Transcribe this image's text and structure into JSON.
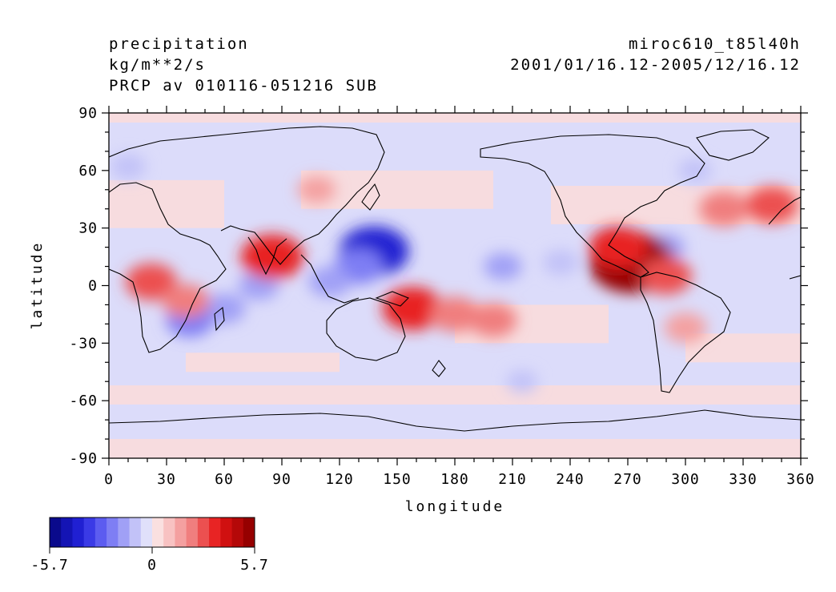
{
  "header": {
    "left_lines": [
      "precipitation",
      "kg/m**2/s",
      "PRCP av 010116-051216 SUB"
    ],
    "right_lines": [
      "miroc610_t85l40h",
      "2001/01/16.12-2005/12/16.12"
    ]
  },
  "chart_data": {
    "type": "heatmap",
    "xlabel": "longitude",
    "ylabel": "latitude",
    "xlim": [
      0,
      360
    ],
    "ylim": [
      -90,
      90
    ],
    "x_ticks": [
      0,
      30,
      60,
      90,
      120,
      150,
      180,
      210,
      240,
      270,
      300,
      330,
      360
    ],
    "y_ticks": [
      90,
      60,
      30,
      0,
      -30,
      -60,
      -90
    ],
    "colorbar": {
      "range": [
        -5.7,
        5.7
      ],
      "tick_labels": [
        "-5.7",
        "0",
        "5.7"
      ],
      "colors": [
        "#0a0a8c",
        "#1414b4",
        "#2020d2",
        "#3a3ae6",
        "#5c5cf0",
        "#7e7ef4",
        "#a0a0f6",
        "#c2c2f8",
        "#e0e0fa",
        "#fae0e0",
        "#f8c2c2",
        "#f4a0a0",
        "#f07e7e",
        "#ec5050",
        "#e82424",
        "#d01010",
        "#b40808",
        "#960000"
      ]
    },
    "background_colors": {
      "negative": "#dcdcfa",
      "positive": "#fadcdc"
    },
    "anomalies": [
      {
        "lon": 138,
        "lat": 18,
        "value": -4.2
      },
      {
        "lon": 130,
        "lat": 10,
        "value": -2.4
      },
      {
        "lon": 115,
        "lat": 2,
        "value": -1.8
      },
      {
        "lon": 78,
        "lat": 0,
        "value": -1.6
      },
      {
        "lon": 60,
        "lat": -12,
        "value": -1.8
      },
      {
        "lon": 42,
        "lat": -18,
        "value": -2.2
      },
      {
        "lon": 205,
        "lat": 10,
        "value": -1.4
      },
      {
        "lon": 235,
        "lat": 12,
        "value": -1.2
      },
      {
        "lon": 290,
        "lat": 20,
        "value": -1.3
      },
      {
        "lon": 10,
        "lat": 62,
        "value": -1.2
      },
      {
        "lon": 305,
        "lat": 60,
        "value": -1.0
      },
      {
        "lon": 215,
        "lat": -50,
        "value": -0.8
      },
      {
        "lon": 272,
        "lat": 12,
        "value": 5.6
      },
      {
        "lon": 265,
        "lat": 20,
        "value": 3.2
      },
      {
        "lon": 85,
        "lat": 15,
        "value": 3.6
      },
      {
        "lon": 158,
        "lat": -12,
        "value": 3.4
      },
      {
        "lon": 180,
        "lat": -15,
        "value": 2.4
      },
      {
        "lon": 200,
        "lat": -18,
        "value": 2.2
      },
      {
        "lon": 290,
        "lat": 5,
        "value": 2.6
      },
      {
        "lon": 22,
        "lat": 2,
        "value": 2.6
      },
      {
        "lon": 40,
        "lat": -8,
        "value": 2.2
      },
      {
        "lon": 320,
        "lat": 40,
        "value": 2.4
      },
      {
        "lon": 345,
        "lat": 42,
        "value": 2.6
      },
      {
        "lon": 300,
        "lat": -22,
        "value": 1.8
      },
      {
        "lon": 108,
        "lat": 50,
        "value": 1.4
      }
    ]
  }
}
